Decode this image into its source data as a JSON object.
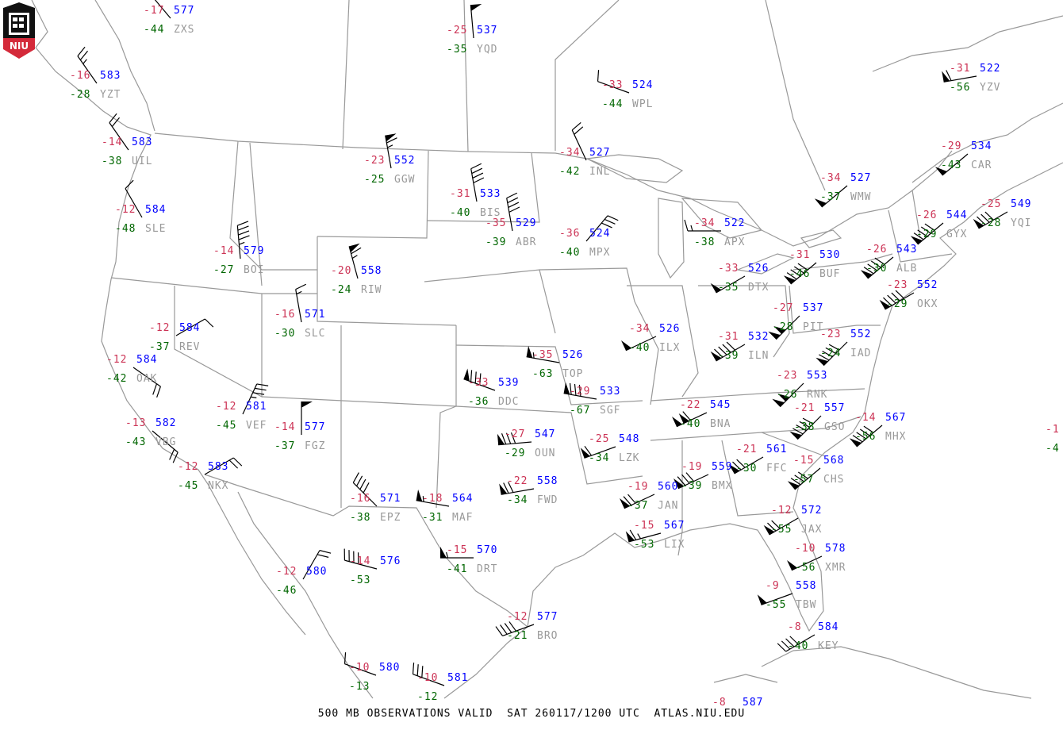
{
  "title": "500 MB OBSERVATIONS VALID  SAT 260117/1200 UTC  ATLAS.NIU.EDU",
  "logo": {
    "text": "NIU",
    "colors": {
      "shield": "#111111",
      "band": "#d42a3a"
    }
  },
  "colors": {
    "temperature": "#cc3355",
    "height": "#0000ff",
    "dewpoint": "#006600",
    "station_id": "#999999",
    "map_lines": "#999999",
    "wind_barb": "#000000"
  },
  "legend": {
    "wind_barb_units": "knots"
  },
  "stations": [
    {
      "id": "ZXS",
      "temp": "-17",
      "height": "577",
      "dewpoint": "-44",
      "wind_dir": 320,
      "wind_kt": 10
    },
    {
      "id": "YZT",
      "temp": "-16",
      "height": "583",
      "dewpoint": "-28",
      "wind_dir": 325,
      "wind_kt": 25
    },
    {
      "id": "UIL",
      "temp": "-14",
      "height": "583",
      "dewpoint": "-38",
      "wind_dir": 325,
      "wind_kt": 20
    },
    {
      "id": "SLE",
      "temp": "-12",
      "height": "584",
      "dewpoint": "-48",
      "wind_dir": 330,
      "wind_kt": 10
    },
    {
      "id": "BOI",
      "temp": "-14",
      "height": "579",
      "dewpoint": "-27",
      "wind_dir": 355,
      "wind_kt": 45
    },
    {
      "id": "YQD",
      "temp": "-25",
      "height": "537",
      "dewpoint": "-35",
      "wind_dir": 355,
      "wind_kt": 50
    },
    {
      "id": "GGW",
      "temp": "-23",
      "height": "552",
      "dewpoint": "-25",
      "wind_dir": 350,
      "wind_kt": 65
    },
    {
      "id": "BIS",
      "temp": "-31",
      "height": "533",
      "dewpoint": "-40",
      "wind_dir": 350,
      "wind_kt": 40
    },
    {
      "id": "ABR",
      "temp": "-35",
      "height": "529",
      "dewpoint": "-39",
      "wind_dir": 350,
      "wind_kt": 40
    },
    {
      "id": "RIW",
      "temp": "-20",
      "height": "558",
      "dewpoint": "-24",
      "wind_dir": 345,
      "wind_kt": 65
    },
    {
      "id": "SLC",
      "temp": "-16",
      "height": "571",
      "dewpoint": "-30",
      "wind_dir": 350,
      "wind_kt": 15
    },
    {
      "id": "REV",
      "temp": "-12",
      "height": "584",
      "dewpoint": "-37",
      "wind_dir": 60,
      "wind_kt": 10
    },
    {
      "id": "OAK",
      "temp": "-12",
      "height": "584",
      "dewpoint": "-42",
      "wind_dir": 125,
      "wind_kt": 20
    },
    {
      "id": "VEF",
      "temp": "-12",
      "height": "581",
      "dewpoint": "-45",
      "wind_dir": 25,
      "wind_kt": 35
    },
    {
      "id": "FGZ",
      "temp": "-14",
      "height": "577",
      "dewpoint": "-37",
      "wind_dir": 360,
      "wind_kt": 50
    },
    {
      "id": "VBG",
      "temp": "-13",
      "height": "582",
      "dewpoint": "-43",
      "wind_dir": 130,
      "wind_kt": 20
    },
    {
      "id": "NKX",
      "temp": "-12",
      "height": "583",
      "dewpoint": "-45",
      "wind_dir": 60,
      "wind_kt": 20
    },
    {
      "id": "EPZ",
      "temp": "-16",
      "height": "571",
      "dewpoint": "-38",
      "wind_dir": 315,
      "wind_kt": 40
    },
    {
      "id": "MAF",
      "temp": "-18",
      "height": "564",
      "dewpoint": "-31",
      "wind_dir": 280,
      "wind_kt": 55
    },
    {
      "id": "DRT",
      "temp": "-15",
      "height": "570",
      "dewpoint": "-41",
      "wind_dir": 270,
      "wind_kt": 55
    },
    {
      "id": "",
      "temp": "-14",
      "height": "576",
      "dewpoint": "-53",
      "wind_dir": 285,
      "wind_kt": 40
    },
    {
      "id": "",
      "temp": "-12",
      "height": "580",
      "dewpoint": "-46",
      "wind_dir": 30,
      "wind_kt": 20
    },
    {
      "id": "",
      "temp": "-10",
      "height": "580",
      "dewpoint": "-13",
      "wind_dir": 290,
      "wind_kt": 10
    },
    {
      "id": "",
      "temp": "-10",
      "height": "581",
      "dewpoint": "-12",
      "wind_dir": 290,
      "wind_kt": 30
    },
    {
      "id": "BRO",
      "temp": "-12",
      "height": "577",
      "dewpoint": "-21",
      "wind_dir": 250,
      "wind_kt": 40
    },
    {
      "id": "WPL",
      "temp": "-33",
      "height": "524",
      "dewpoint": "-44",
      "wind_dir": 290,
      "wind_kt": 10
    },
    {
      "id": "INL",
      "temp": "-34",
      "height": "527",
      "dewpoint": "-42",
      "wind_dir": 335,
      "wind_kt": 20
    },
    {
      "id": "MPX",
      "temp": "-36",
      "height": "524",
      "dewpoint": "-40",
      "wind_dir": 40,
      "wind_kt": 30
    },
    {
      "id": "TOP",
      "temp": "-35",
      "height": "526",
      "dewpoint": "-63",
      "wind_dir": 280,
      "wind_kt": 55
    },
    {
      "id": "DDC",
      "temp": "-33",
      "height": "539",
      "dewpoint": "-36",
      "wind_dir": 290,
      "wind_kt": 80
    },
    {
      "id": "SGF",
      "temp": "-29",
      "height": "533",
      "dewpoint": "-67",
      "wind_dir": 280,
      "wind_kt": 80
    },
    {
      "id": "OUN",
      "temp": "-27",
      "height": "547",
      "dewpoint": "-29",
      "wind_dir": 265,
      "wind_kt": 80
    },
    {
      "id": "FWD",
      "temp": "-22",
      "height": "558",
      "dewpoint": "-34",
      "wind_dir": 260,
      "wind_kt": 70
    },
    {
      "id": "LZK",
      "temp": "-25",
      "height": "548",
      "dewpoint": "-34",
      "wind_dir": 250,
      "wind_kt": 60
    },
    {
      "id": "ILX",
      "temp": "-34",
      "height": "526",
      "dewpoint": "-40",
      "wind_dir": 245,
      "wind_kt": 50
    },
    {
      "id": "JAN",
      "temp": "-19",
      "height": "560",
      "dewpoint": "-37",
      "wind_dir": 245,
      "wind_kt": 70
    },
    {
      "id": "LIX",
      "temp": "-15",
      "height": "567",
      "dewpoint": "-53",
      "wind_dir": 255,
      "wind_kt": 65
    },
    {
      "id": "BMX",
      "temp": "-19",
      "height": "559",
      "dewpoint": "-39",
      "wind_dir": 245,
      "wind_kt": 80
    },
    {
      "id": "FFC",
      "temp": "-21",
      "height": "561",
      "dewpoint": "-30",
      "wind_dir": 240,
      "wind_kt": 70
    },
    {
      "id": "BNA",
      "temp": "-22",
      "height": "545",
      "dewpoint": "-40",
      "wind_dir": 245,
      "wind_kt": 110
    },
    {
      "id": "ILN",
      "temp": "-31",
      "height": "532",
      "dewpoint": "-39",
      "wind_dir": 240,
      "wind_kt": 90
    },
    {
      "id": "DTX",
      "temp": "-33",
      "height": "526",
      "dewpoint": "-35",
      "wind_dir": 240,
      "wind_kt": 50
    },
    {
      "id": "APX",
      "temp": "-34",
      "height": "522",
      "dewpoint": "-38",
      "wind_dir": 270,
      "wind_kt": 15
    },
    {
      "id": "BUF",
      "temp": "-31",
      "height": "530",
      "dewpoint": "-46",
      "wind_dir": 230,
      "wind_kt": 90
    },
    {
      "id": "PIT",
      "temp": "-27",
      "height": "537",
      "dewpoint": "-28",
      "wind_dir": 225,
      "wind_kt": 100
    },
    {
      "id": "IAD",
      "temp": "-23",
      "height": "552",
      "dewpoint": "-24",
      "wind_dir": 225,
      "wind_kt": 90
    },
    {
      "id": "RNK",
      "temp": "-23",
      "height": "553",
      "dewpoint": "-26",
      "wind_dir": 225,
      "wind_kt": 100
    },
    {
      "id": "GSO",
      "temp": "-21",
      "height": "557",
      "dewpoint": "-38",
      "wind_dir": 225,
      "wind_kt": 90
    },
    {
      "id": "MHX",
      "temp": "-14",
      "height": "567",
      "dewpoint": "-56",
      "wind_dir": 230,
      "wind_kt": 90
    },
    {
      "id": "CHS",
      "temp": "-15",
      "height": "568",
      "dewpoint": "-57",
      "wind_dir": 230,
      "wind_kt": 80
    },
    {
      "id": "JAX",
      "temp": "-12",
      "height": "572",
      "dewpoint": "-55",
      "wind_dir": 240,
      "wind_kt": 70
    },
    {
      "id": "XMR",
      "temp": "-10",
      "height": "578",
      "dewpoint": "-56",
      "wind_dir": 245,
      "wind_kt": 50
    },
    {
      "id": "TBW",
      "temp": "-9",
      "height": "558",
      "dewpoint": "-55",
      "wind_dir": 250,
      "wind_kt": 50
    },
    {
      "id": "KEY",
      "temp": "-8",
      "height": "584",
      "dewpoint": "-40",
      "wind_dir": 240,
      "wind_kt": 40
    },
    {
      "id": "GYX",
      "temp": "-26",
      "height": "544",
      "dewpoint": "-29",
      "wind_dir": 230,
      "wind_kt": 90
    },
    {
      "id": "ALB",
      "temp": "-26",
      "height": "543",
      "dewpoint": "-30",
      "wind_dir": 230,
      "wind_kt": 90
    },
    {
      "id": "OKX",
      "temp": "-23",
      "height": "552",
      "dewpoint": "-29",
      "wind_dir": 240,
      "wind_kt": 90
    },
    {
      "id": "CAR",
      "temp": "-29",
      "height": "534",
      "dewpoint": "-43",
      "wind_dir": 230,
      "wind_kt": 50
    },
    {
      "id": "YQI",
      "temp": "-25",
      "height": "549",
      "dewpoint": "-28",
      "wind_dir": 240,
      "wind_kt": 80
    },
    {
      "id": "WMW",
      "temp": "-34",
      "height": "527",
      "dewpoint": "-37",
      "wind_dir": 230,
      "wind_kt": 50
    },
    {
      "id": "YZV",
      "temp": "-31",
      "height": "522",
      "dewpoint": "-56",
      "wind_dir": 260,
      "wind_kt": 60
    },
    {
      "id": "",
      "temp": "-1",
      "height": "",
      "dewpoint": "-4",
      "wind_dir": null,
      "wind_kt": null
    },
    {
      "id": "",
      "temp": "-8",
      "height": "587",
      "dewpoint": "",
      "wind_dir": null,
      "wind_kt": null
    }
  ]
}
